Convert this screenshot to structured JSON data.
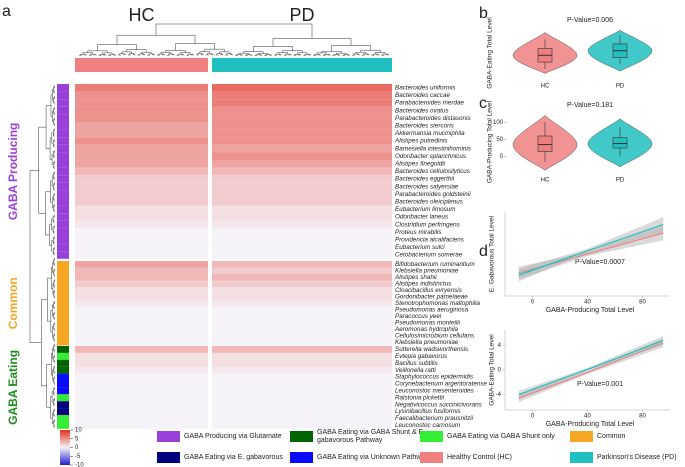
{
  "chart_data": [
    {
      "type": "heatmap",
      "label": "a",
      "columns": [
        {
          "name": "HC",
          "color": "#f08080"
        },
        {
          "name": "PD",
          "color": "#20c0c0"
        }
      ],
      "colorbar": {
        "lim": [
          -10,
          10
        ],
        "ticks": [
          10,
          5,
          0,
          -5,
          -10
        ]
      },
      "sections": [
        {
          "name": "GABA Producing",
          "color": "#9b3fdb",
          "rows": [
            {
              "label": "Bacteroides uniformis",
              "category": 0,
              "values": [
                6,
                7
              ]
            },
            {
              "label": "Bacteroides caccae",
              "category": 0,
              "values": [
                5,
                6
              ]
            },
            {
              "label": "Parabacteroides merdae",
              "category": 0,
              "values": [
                5,
                6
              ]
            },
            {
              "label": "Bacteroides ovatus",
              "category": 0,
              "values": [
                5,
                5
              ]
            },
            {
              "label": "Parabacteroides distasonis",
              "category": 0,
              "values": [
                5,
                5
              ]
            },
            {
              "label": "Bacteroides stercoris",
              "category": 0,
              "values": [
                4,
                5
              ]
            },
            {
              "label": "Akkermansia muciniphila",
              "category": 0,
              "values": [
                4,
                5
              ]
            },
            {
              "label": "Alistipes putredinis",
              "category": 0,
              "values": [
                5,
                5
              ]
            },
            {
              "label": "Barnesiella intestinihominis",
              "category": 0,
              "values": [
                4,
                4
              ]
            },
            {
              "label": "Odoribacter splanchnicus",
              "category": 0,
              "values": [
                4,
                5
              ]
            },
            {
              "label": "Alistipes finegoldii",
              "category": 0,
              "values": [
                4,
                4
              ]
            },
            {
              "label": "Bacteroides cellulosilyticus",
              "category": 0,
              "values": [
                3,
                3
              ]
            },
            {
              "label": "Bacteroides eggerthii",
              "category": 0,
              "values": [
                2,
                2
              ]
            },
            {
              "label": "Bacteroides salyersiae",
              "category": 0,
              "values": [
                2,
                2
              ]
            },
            {
              "label": "Parabacteroides goldsteinii",
              "category": 0,
              "values": [
                2,
                2
              ]
            },
            {
              "label": "Bacteroides oleiciplenus",
              "category": 0,
              "values": [
                2,
                2
              ]
            },
            {
              "label": "Eubacterium limosum",
              "category": 0,
              "values": [
                1,
                1
              ]
            },
            {
              "label": "Odoribacter laneus",
              "category": 0,
              "values": [
                1,
                1
              ]
            },
            {
              "label": "Clostridium perfringens",
              "category": 0,
              "values": [
                0.5,
                0.5
              ]
            },
            {
              "label": "Proteus mirabilis",
              "category": 0,
              "values": [
                0,
                0
              ]
            },
            {
              "label": "Providencia alcalifaciens",
              "category": 0,
              "values": [
                0,
                0
              ]
            },
            {
              "label": "Eubacterium sulci",
              "category": 0,
              "values": [
                0,
                0
              ]
            },
            {
              "label": "Cetobacterium somerae",
              "category": 0,
              "values": [
                0,
                0
              ]
            }
          ]
        },
        {
          "name": "Common",
          "color": "#f5a623",
          "rows": [
            {
              "label": "Bifidobacterium ruminantium",
              "category": 3,
              "values": [
                4,
                3
              ]
            },
            {
              "label": "Klebsiella pneumoniae",
              "category": 3,
              "values": [
                3,
                2
              ]
            },
            {
              "label": "Alistipes shahii",
              "category": 3,
              "values": [
                3,
                3
              ]
            },
            {
              "label": "Alistipes indistinctus",
              "category": 3,
              "values": [
                2,
                2
              ]
            },
            {
              "label": "Cloacibacillus evryensis",
              "category": 3,
              "values": [
                1,
                1
              ]
            },
            {
              "label": "Gordonibacter pamelaeae",
              "category": 3,
              "values": [
                1,
                1
              ]
            },
            {
              "label": "Stenotrophomonas maltophilia",
              "category": 3,
              "values": [
                0.5,
                0.5
              ]
            },
            {
              "label": "Pseudomonas aeruginosa",
              "category": 3,
              "values": [
                0,
                0
              ]
            },
            {
              "label": "Paracoccus yeei",
              "category": 3,
              "values": [
                0,
                0
              ]
            },
            {
              "label": "Pseudomonas monteilii",
              "category": 3,
              "values": [
                0,
                0
              ]
            },
            {
              "label": "Aeromonas hydrophila",
              "category": 3,
              "values": [
                0,
                0
              ]
            },
            {
              "label": "Cellulosimicrobium cellulans",
              "category": 3,
              "values": [
                0,
                0
              ]
            },
            {
              "label": "Klebsiella pneumoniae",
              "category": 3,
              "values": [
                0,
                0
              ]
            }
          ]
        },
        {
          "name": "GABA Eating",
          "color": "#1e8c1e",
          "rows": [
            {
              "label": "Sutterella wadsworthensis",
              "category": 1,
              "values": [
                3,
                3
              ]
            },
            {
              "label": "Evtepia gabavorus",
              "category": 2,
              "values": [
                1,
                1
              ]
            },
            {
              "label": "Bacillus subtilis",
              "category": 1,
              "values": [
                1,
                1
              ]
            },
            {
              "label": "Veillonella ratti",
              "category": 1,
              "values": [
                0.5,
                0.5
              ]
            },
            {
              "label": "Staphylococcus epidermidis",
              "category": 5,
              "values": [
                0,
                0
              ]
            },
            {
              "label": "Corynebacterium argentoratense",
              "category": 5,
              "values": [
                0,
                0
              ]
            },
            {
              "label": "Leuconostoc mesenteroides",
              "category": 5,
              "values": [
                0,
                0
              ]
            },
            {
              "label": "Ralstonia pickettii",
              "category": 2,
              "values": [
                0,
                0
              ]
            },
            {
              "label": "Negativicoccus succinicivorans",
              "category": 4,
              "values": [
                0,
                0
              ]
            },
            {
              "label": "Lysinibacillus fusiformis",
              "category": 4,
              "values": [
                0,
                0
              ]
            },
            {
              "label": "Faecalibacterium prausnitzii",
              "category": 2,
              "values": [
                0,
                0
              ]
            },
            {
              "label": "Leuconostoc carnosum",
              "category": 2,
              "values": [
                0,
                0
              ]
            }
          ]
        }
      ]
    },
    {
      "type": "violin",
      "label": "b",
      "annotation": "P-Value=0.006",
      "ylabel": "GABA-Eating Total Level",
      "ylim": [
        -11,
        11
      ],
      "groups": [
        {
          "name": "HC",
          "color": "#f08080",
          "min": -9,
          "lo": -7,
          "q1": -4,
          "median": -1,
          "q3": 2,
          "hi": 6,
          "max": 9
        },
        {
          "name": "PD",
          "color": "#20c0c0",
          "min": -8,
          "lo": -5,
          "q1": -2,
          "median": 1,
          "q3": 4,
          "hi": 8,
          "max": 10
        }
      ]
    },
    {
      "type": "violin",
      "label": "c",
      "annotation": "P-Value=0.181",
      "ylabel": "GABA-Producing Total Level",
      "ylim": [
        -45,
        130
      ],
      "yticks": [
        0,
        50,
        100
      ],
      "groups": [
        {
          "name": "HC",
          "color": "#f08080",
          "min": -40,
          "lo": -15,
          "q1": 15,
          "median": 35,
          "q3": 60,
          "hi": 100,
          "max": 120
        },
        {
          "name": "PD",
          "color": "#20c0c0",
          "min": -30,
          "lo": 0,
          "q1": 25,
          "median": 38,
          "q3": 55,
          "hi": 85,
          "max": 110
        }
      ]
    },
    {
      "type": "line",
      "label": "d",
      "annotation": "P-Value=0.0007",
      "xlabel": "GABA-Producing Total Level",
      "ylabel": "E. Gabavorous Total Level",
      "xlim": [
        -20,
        100
      ],
      "xticks": [
        0,
        40,
        80
      ],
      "ylim": [
        -2,
        2
      ],
      "series": [
        {
          "name": "HC",
          "color": "#f08080",
          "x": [
            -10,
            40,
            95
          ],
          "y": [
            -0.9,
            0.0,
            1.0
          ],
          "ci": [
            0.3,
            0.1,
            0.35
          ]
        },
        {
          "name": "PD",
          "color": "#20c0c0",
          "x": [
            -10,
            40,
            95
          ],
          "y": [
            -1.0,
            0.15,
            1.4
          ],
          "ci": [
            0.3,
            0.1,
            0.35
          ]
        }
      ]
    },
    {
      "type": "line",
      "annotation": "P-Value=0.001",
      "xlabel": "GABA-Producing Total Level",
      "ylabel": "GABA-Eating Total Level",
      "xlim": [
        -20,
        100
      ],
      "xticks": [
        0,
        40,
        80
      ],
      "ylim": [
        -6.5,
        6.5
      ],
      "yticks": [
        -4,
        0,
        4
      ],
      "series": [
        {
          "name": "HC",
          "color": "#f08080",
          "x": [
            -10,
            40,
            95
          ],
          "y": [
            -4.6,
            -0.4,
            4.4
          ],
          "ci": [
            0.6,
            0.25,
            0.7
          ]
        },
        {
          "name": "PD",
          "color": "#20c0c0",
          "x": [
            -10,
            40,
            95
          ],
          "y": [
            -4.0,
            0.1,
            4.8
          ],
          "ci": [
            0.6,
            0.25,
            0.7
          ]
        }
      ]
    }
  ],
  "legend": {
    "entries": [
      {
        "label": "GABA Producing via Glutamate",
        "color": "#9b3fdb"
      },
      {
        "label": "GABA Eating via GABA Shunt & E. gabavorous Pathway",
        "color": "#006400"
      },
      {
        "label": "GABA Eating via GABA Shunt only",
        "color": "#33ee33"
      },
      {
        "label": "Common",
        "color": "#f5a623"
      },
      {
        "label": "GABA Eating via E. gabavorous",
        "color": "#000080"
      },
      {
        "label": "GABA Eating via Unknown Pathway",
        "color": "#0a0aff"
      },
      {
        "label": "Healthy Control (HC)",
        "color": "#f08080"
      },
      {
        "label": "Parkinson's Disease (PD)",
        "color": "#20c0c0"
      }
    ]
  }
}
